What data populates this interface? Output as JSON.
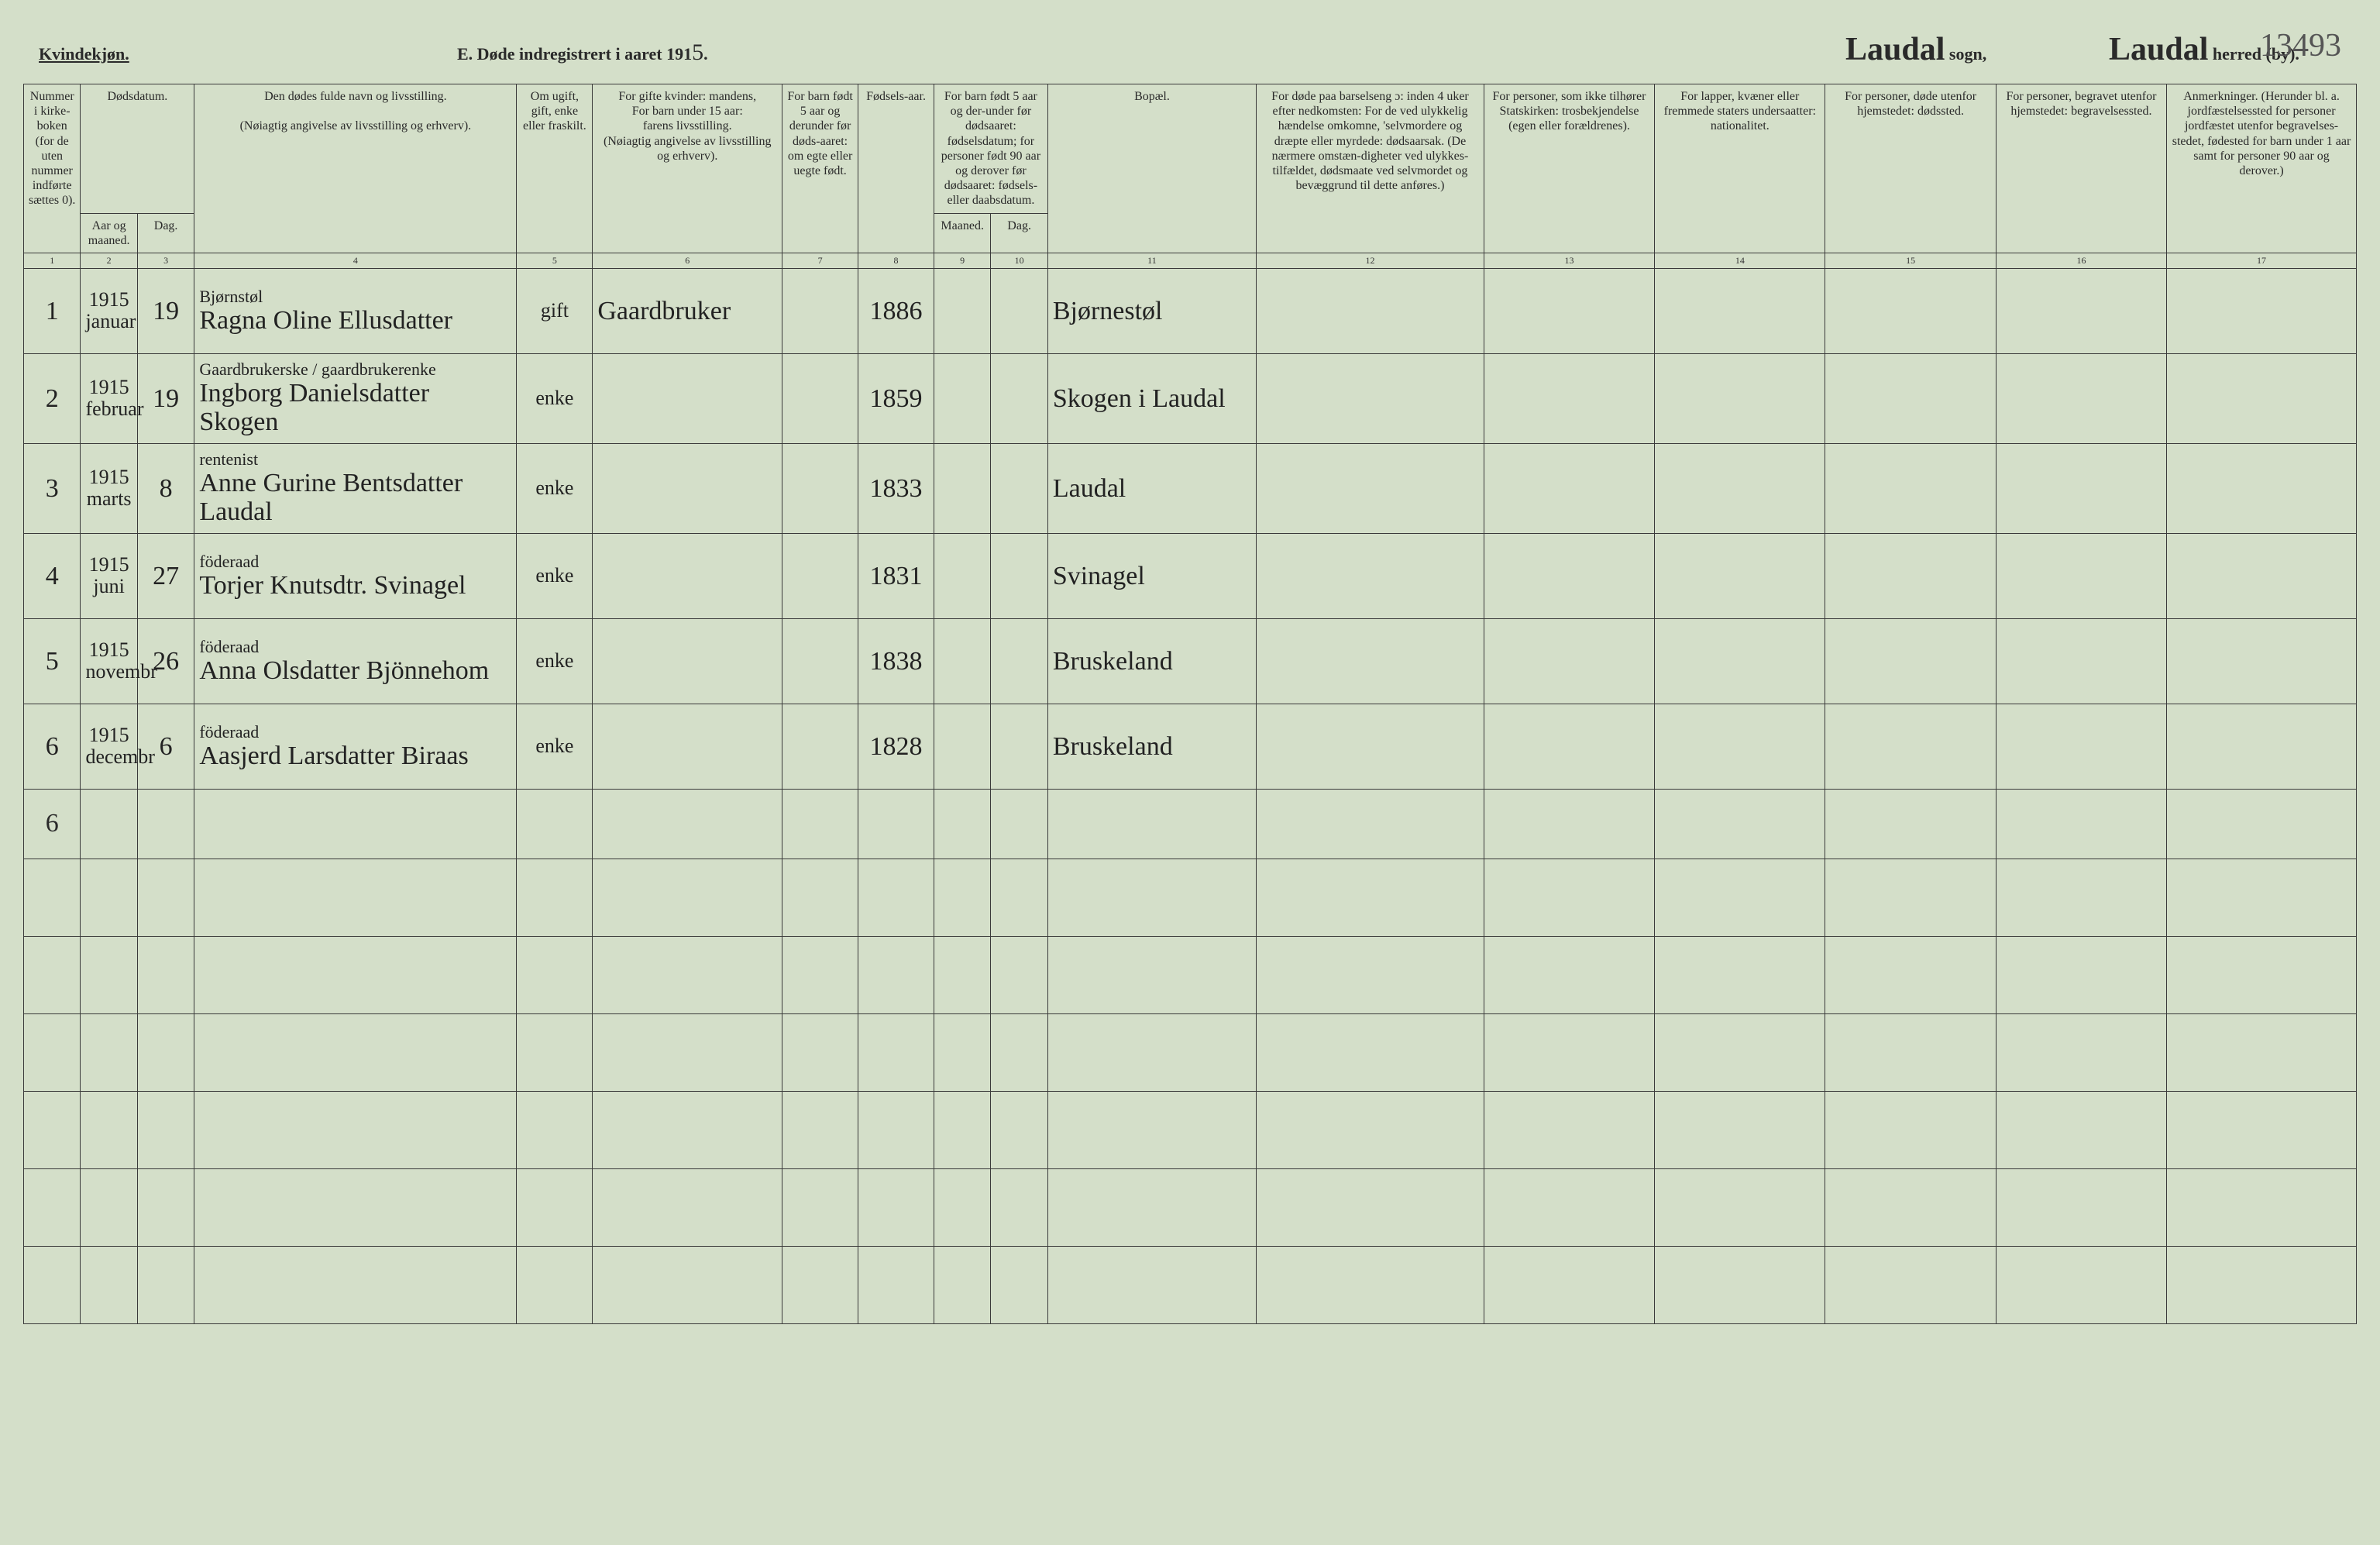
{
  "header": {
    "kvinde": "Kvindekjøn.",
    "title_prefix": "E.  Døde indregistrert i aaret 191",
    "year_hand": "5",
    "title_suffix": ".",
    "sogn_hand": "Laudal",
    "sogn_label": "sogn,",
    "herred_hand": "Laudal",
    "herred_label": "herred (by).",
    "pagenum": "13493"
  },
  "column_headers": {
    "c1": "Nummer i kirke-boken (for de uten nummer indførte sættes 0).",
    "c2_top": "Dødsdatum.",
    "c2a": "Aar og maaned.",
    "c2b": "Dag.",
    "c4a": "Den dødes fulde navn og livsstilling.",
    "c4b": "(Nøiagtig angivelse av livsstilling og erhverv).",
    "c5": "Om ugift, gift, enke eller fraskilt.",
    "c6a": "For gifte kvinder: mandens,",
    "c6b": "For barn under 15 aar:",
    "c6c": "farens livsstilling.",
    "c6d": "(Nøiagtig angivelse av livsstilling og erhverv).",
    "c7": "For barn født 5 aar og derunder før døds-aaret: om egte eller uegte født.",
    "c8": "Fødsels-aar.",
    "c9_top": "For barn født 5 aar og der-under før dødsaaret: fødselsdatum; for personer født 90 aar og derover før dødsaaret: fødsels- eller daabsdatum.",
    "c9a": "Maaned.",
    "c9b": "Dag.",
    "c11": "Bopæl.",
    "c12": "For døde paa barselseng ɔ: inden 4 uker efter nedkomsten: For de ved ulykkelig hændelse omkomne, 'selvmordere og dræpte eller myrdede: dødsaarsak. (De nærmere omstæn-digheter ved ulykkes-tilfældet, dødsmaate ved selvmordet og bevæggrund til dette anføres.)",
    "c13": "For personer, som ikke tilhører Statskirken: trosbekjendelse (egen eller forældrenes).",
    "c14": "For lapper, kvæner eller fremmede staters undersaatter: nationalitet.",
    "c15": "For personer, døde utenfor hjemstedet: dødssted.",
    "c16": "For personer, begravet utenfor hjemstedet: begravelsessted.",
    "c17": "Anmerkninger. (Herunder bl. a. jordfæstelsessted for personer jordfæstet utenfor begravelses-stedet, fødested for barn under 1 aar samt for personer 90 aar og derover.)"
  },
  "colnums": [
    "1",
    "2",
    "3",
    "4",
    "5",
    "6",
    "7",
    "8",
    "9",
    "10",
    "11",
    "12",
    "13",
    "14",
    "15",
    "16",
    "17"
  ],
  "rows": [
    {
      "num": "1",
      "aar_mnd": "1915 januar",
      "dag": "19",
      "navn": "Ragna Oline Ellusdatter",
      "navn_sup": "Bjørnstøl",
      "status": "gift",
      "erhverv": "Gaardbruker",
      "egte": "",
      "faar": "1886",
      "mnd": "",
      "ddag": "",
      "bopael": "Bjørnestøl"
    },
    {
      "num": "2",
      "aar_mnd": "1915 februar",
      "dag": "19",
      "navn": "Ingborg Danielsdatter Skogen",
      "navn_sup": "Gaardbrukerske / gaardbrukerenke",
      "status": "enke",
      "erhverv": "",
      "egte": "",
      "faar": "1859",
      "mnd": "",
      "ddag": "",
      "bopael": "Skogen i Laudal"
    },
    {
      "num": "3",
      "aar_mnd": "1915 marts",
      "dag": "8",
      "navn": "Anne Gurine Bentsdatter Laudal",
      "navn_sup": "rentenist",
      "status": "enke",
      "erhverv": "",
      "egte": "",
      "faar": "1833",
      "mnd": "",
      "ddag": "",
      "bopael": "Laudal"
    },
    {
      "num": "4",
      "aar_mnd": "1915 juni",
      "dag": "27",
      "navn": "Torjer Knutsdtr. Svinagel",
      "navn_sup": "föderaad",
      "status": "enke",
      "erhverv": "",
      "egte": "",
      "faar": "1831",
      "mnd": "",
      "ddag": "",
      "bopael": "Svinagel"
    },
    {
      "num": "5",
      "aar_mnd": "1915 novembr",
      "dag": "26",
      "navn": "Anna Olsdatter Bjönnehom",
      "navn_sup": "föderaad",
      "status": "enke",
      "erhverv": "",
      "egte": "",
      "faar": "1838",
      "mnd": "",
      "ddag": "",
      "bopael": "Bruskeland"
    },
    {
      "num": "6",
      "aar_mnd": "1915 decembr",
      "dag": "6",
      "navn": "Aasjerd Larsdatter Biraas",
      "navn_sup": "föderaad",
      "status": "enke",
      "erhverv": "",
      "egte": "",
      "faar": "1828",
      "mnd": "",
      "ddag": "",
      "bopael": "Bruskeland"
    }
  ],
  "total": "6",
  "colors": {
    "page_bg": "#d4dfc9",
    "ink": "#2a2a2a",
    "rule": "#3a3a3a"
  }
}
